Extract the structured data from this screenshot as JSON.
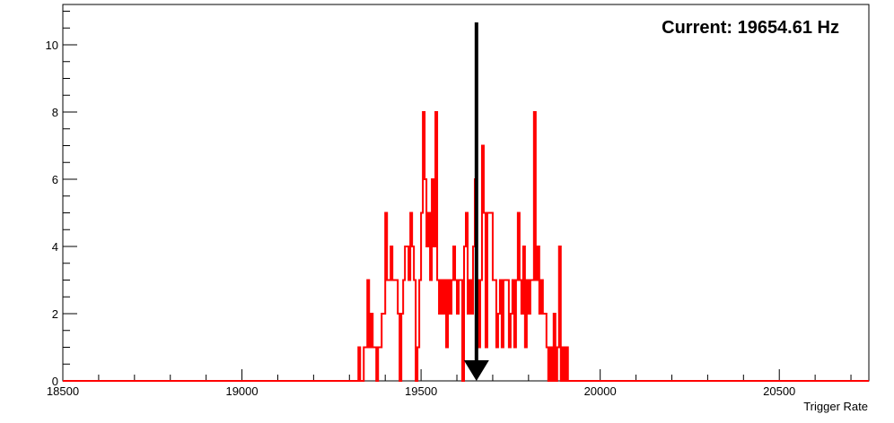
{
  "chart_data": {
    "type": "histogram",
    "title": "",
    "xlabel": "Trigger Rate",
    "ylabel": "",
    "xlim": [
      18500,
      20750
    ],
    "ylim": [
      0,
      11.2
    ],
    "grid": false,
    "x_ticks": [
      18500,
      19000,
      19500,
      20000,
      20500
    ],
    "y_ticks": [
      0,
      2,
      4,
      6,
      8,
      10
    ],
    "line_color": "#ff0000",
    "annotation_text": "Current: 19654.61 Hz",
    "marker": {
      "x": 19654.61,
      "color": "#000000"
    },
    "bins": [
      [
        19320,
        0
      ],
      [
        19325,
        1
      ],
      [
        19330,
        0
      ],
      [
        19340,
        1
      ],
      [
        19345,
        1
      ],
      [
        19350,
        3
      ],
      [
        19355,
        1
      ],
      [
        19360,
        2
      ],
      [
        19365,
        1
      ],
      [
        19370,
        1
      ],
      [
        19375,
        0
      ],
      [
        19380,
        1
      ],
      [
        19385,
        1
      ],
      [
        19390,
        2
      ],
      [
        19395,
        2
      ],
      [
        19400,
        5
      ],
      [
        19405,
        3
      ],
      [
        19410,
        3
      ],
      [
        19415,
        4
      ],
      [
        19420,
        3
      ],
      [
        19425,
        3
      ],
      [
        19430,
        3
      ],
      [
        19435,
        2
      ],
      [
        19440,
        0
      ],
      [
        19445,
        2
      ],
      [
        19450,
        3
      ],
      [
        19455,
        4
      ],
      [
        19460,
        4
      ],
      [
        19465,
        3
      ],
      [
        19470,
        5
      ],
      [
        19475,
        4
      ],
      [
        19480,
        3
      ],
      [
        19485,
        0
      ],
      [
        19490,
        1
      ],
      [
        19495,
        3
      ],
      [
        19500,
        5
      ],
      [
        19505,
        8
      ],
      [
        19510,
        6
      ],
      [
        19515,
        4
      ],
      [
        19520,
        5
      ],
      [
        19525,
        3
      ],
      [
        19530,
        6
      ],
      [
        19535,
        4
      ],
      [
        19540,
        8
      ],
      [
        19545,
        3
      ],
      [
        19550,
        2
      ],
      [
        19555,
        3
      ],
      [
        19560,
        2
      ],
      [
        19565,
        3
      ],
      [
        19570,
        1
      ],
      [
        19575,
        3
      ],
      [
        19580,
        2
      ],
      [
        19585,
        3
      ],
      [
        19590,
        4
      ],
      [
        19595,
        3
      ],
      [
        19600,
        2
      ],
      [
        19605,
        3
      ],
      [
        19610,
        3
      ],
      [
        19615,
        0
      ],
      [
        19620,
        4
      ],
      [
        19625,
        5
      ],
      [
        19630,
        2
      ],
      [
        19635,
        3
      ],
      [
        19640,
        2
      ],
      [
        19645,
        4
      ],
      [
        19650,
        6
      ],
      [
        19655,
        3
      ],
      [
        19660,
        1
      ],
      [
        19665,
        3
      ],
      [
        19670,
        7
      ],
      [
        19675,
        5
      ],
      [
        19680,
        1
      ],
      [
        19685,
        5
      ],
      [
        19690,
        5
      ],
      [
        19695,
        5
      ],
      [
        19700,
        3
      ],
      [
        19705,
        3
      ],
      [
        19710,
        1
      ],
      [
        19715,
        2
      ],
      [
        19720,
        3
      ],
      [
        19725,
        1
      ],
      [
        19730,
        3
      ],
      [
        19735,
        3
      ],
      [
        19740,
        3
      ],
      [
        19745,
        1
      ],
      [
        19750,
        2
      ],
      [
        19755,
        3
      ],
      [
        19760,
        1
      ],
      [
        19765,
        3
      ],
      [
        19770,
        5
      ],
      [
        19775,
        3
      ],
      [
        19780,
        2
      ],
      [
        19785,
        4
      ],
      [
        19790,
        1
      ],
      [
        19795,
        3
      ],
      [
        19800,
        2
      ],
      [
        19805,
        3
      ],
      [
        19810,
        3
      ],
      [
        19815,
        8
      ],
      [
        19820,
        3
      ],
      [
        19825,
        4
      ],
      [
        19830,
        2
      ],
      [
        19835,
        3
      ],
      [
        19840,
        2
      ],
      [
        19845,
        2
      ],
      [
        19850,
        1
      ],
      [
        19855,
        0
      ],
      [
        19860,
        1
      ],
      [
        19865,
        0
      ],
      [
        19870,
        2
      ],
      [
        19875,
        0
      ],
      [
        19880,
        1
      ],
      [
        19885,
        4
      ],
      [
        19890,
        0
      ],
      [
        19895,
        1
      ],
      [
        19900,
        0
      ],
      [
        19905,
        1
      ]
    ]
  }
}
